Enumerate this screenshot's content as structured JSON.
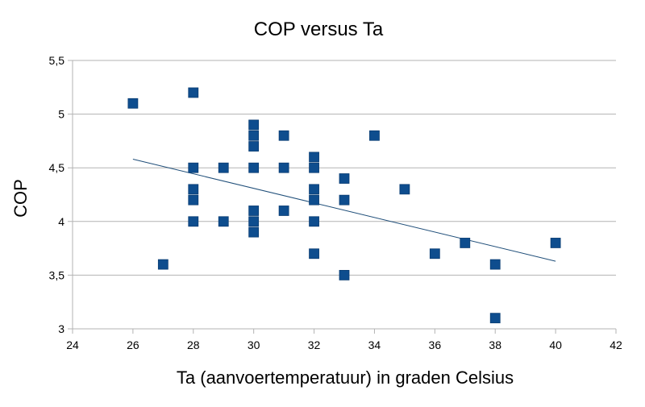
{
  "chart_data": {
    "type": "scatter",
    "title": "COP versus Ta",
    "xlabel": "Ta (aanvoertemperatuur) in graden Celsius",
    "ylabel": "COP",
    "xlim": [
      24,
      42
    ],
    "ylim": [
      3,
      5.5
    ],
    "x_ticks": [
      "24",
      "26",
      "28",
      "30",
      "32",
      "34",
      "36",
      "38",
      "40",
      "42"
    ],
    "y_ticks": [
      "3",
      "3,5",
      "4",
      "4,5",
      "5",
      "5,5"
    ],
    "grid": "horizontal",
    "legend": "none",
    "marker": "square",
    "colors": {
      "marker": "#0e4d8e",
      "trendline": "#1f4e79",
      "grid": "#b3b3b3",
      "axis": "#b3b3b3"
    },
    "series": [
      {
        "points": [
          {
            "x": 26,
            "y": 5.1
          },
          {
            "x": 27,
            "y": 3.6
          },
          {
            "x": 28,
            "y": 5.2
          },
          {
            "x": 28,
            "y": 4.5
          },
          {
            "x": 28,
            "y": 4.3
          },
          {
            "x": 28,
            "y": 4.2
          },
          {
            "x": 28,
            "y": 4.0
          },
          {
            "x": 29,
            "y": 4.5
          },
          {
            "x": 29,
            "y": 4.0
          },
          {
            "x": 30,
            "y": 4.9
          },
          {
            "x": 30,
            "y": 4.8
          },
          {
            "x": 30,
            "y": 4.7
          },
          {
            "x": 30,
            "y": 4.5
          },
          {
            "x": 30,
            "y": 4.1
          },
          {
            "x": 30,
            "y": 4.0
          },
          {
            "x": 30,
            "y": 3.9
          },
          {
            "x": 31,
            "y": 4.8
          },
          {
            "x": 31,
            "y": 4.5
          },
          {
            "x": 31,
            "y": 4.1
          },
          {
            "x": 32,
            "y": 4.6
          },
          {
            "x": 32,
            "y": 4.5
          },
          {
            "x": 32,
            "y": 4.3
          },
          {
            "x": 32,
            "y": 4.2
          },
          {
            "x": 32,
            "y": 4.0
          },
          {
            "x": 32,
            "y": 3.7
          },
          {
            "x": 33,
            "y": 4.4
          },
          {
            "x": 33,
            "y": 4.2
          },
          {
            "x": 33,
            "y": 3.5
          },
          {
            "x": 34,
            "y": 4.8
          },
          {
            "x": 35,
            "y": 4.3
          },
          {
            "x": 36,
            "y": 3.7
          },
          {
            "x": 37,
            "y": 3.8
          },
          {
            "x": 38,
            "y": 3.6
          },
          {
            "x": 38,
            "y": 3.1
          },
          {
            "x": 40,
            "y": 3.8
          }
        ]
      }
    ],
    "trendline": {
      "type": "linear",
      "x_start": 26,
      "y_start": 4.58,
      "x_end": 40,
      "y_end": 3.63
    }
  }
}
